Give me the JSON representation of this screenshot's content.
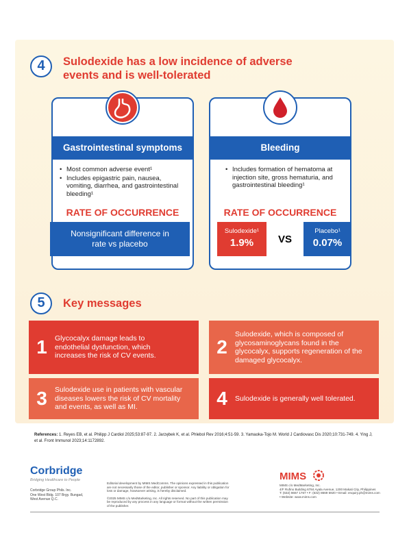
{
  "section4": {
    "number": "4",
    "title": "Sulodexide has a low incidence of adverse events and is well-tolerated",
    "cards": [
      {
        "title": "Gastrointestinal symptoms",
        "bullets": [
          "Most common adverse event¹",
          "Includes epigastric pain, nausea, vomiting, diarrhea, and gastrointestinal bleeding¹"
        ],
        "rate_heading": "RATE OF OCCURRENCE",
        "result": "Nonsignificant difference in rate vs placebo"
      },
      {
        "title": "Bleeding",
        "bullets": [
          "Includes formation of hematoma at injection site, gross hematuria, and gastrointestinal bleeding¹"
        ],
        "rate_heading": "RATE OF OCCURRENCE",
        "comparison": {
          "left": {
            "label": "Sulodexide¹",
            "value": "1.9%"
          },
          "vs": "VS",
          "right": {
            "label": "Placebo¹",
            "value": "0.07%"
          }
        }
      }
    ]
  },
  "section5": {
    "number": "5",
    "title": "Key messages",
    "messages": [
      {
        "number": "1",
        "text": "Glycocalyx damage leads to endothelial dysfunction, which increases the risk of CV events."
      },
      {
        "number": "2",
        "text": "Sulodexide, which is composed of glycosaminoglycans found in the glycocalyx, supports regeneration of the damaged glycocalyx."
      },
      {
        "number": "3",
        "text": "Sulodexide use in patients with vascular diseases lowers the risk of CV mortality and events, as well as MI."
      },
      {
        "number": "4",
        "text": "Sulodexide is generally well tolerated."
      }
    ]
  },
  "references": {
    "label": "References:",
    "text": "1. Reyes EB, et al. Philipp J Cardiol 2025;53:87-97. 2. Jarzębek K, et al. Phlebol Rev 2016;4:51-59. 3. Yamaoka-Tojo M. World J Cardiovasc Dis 2020;10:731-749. 4. Ying J, et al. Front Immunol 2023;14:1172892."
  },
  "footer": {
    "sponsor": {
      "name": "Corbridge",
      "tagline": "Bridging Healthcare to People",
      "address": [
        "Corbridge Group Phils. Inc.",
        "One West Bldg. 107 Brgy. Bungad,",
        "West Avenue Q.C."
      ]
    },
    "disclaimer": [
      "Editorial development by MIMS MedComms. The opinions expressed in this publication are not necessarily those of the editor, publisher or sponsor. Any liability or obligation for loss or damage, howsoever arising, is hereby disclaimed.",
      "©2025 MIMS c/o MedMarketing, Inc. All rights reserved. No part of this publication may be reproduced by any process in any language or format without the written permission of the publisher."
    ],
    "publisher": {
      "name": "MIMS",
      "address": [
        "MIMS c/o MedMarketing, Inc.",
        "4/F Rufino Building 6784 Ayala Avenue, 1200 Makati City, Philippines",
        "T: (632) 8667 1767 • F: (632) 8669 5920 • Email: enquiry.ph@mims.com",
        "• Website: www.mims.com"
      ]
    }
  }
}
